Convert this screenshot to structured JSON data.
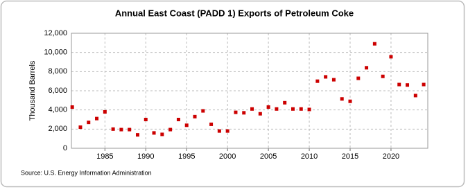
{
  "chart_data": {
    "type": "scatter",
    "title": "Annual East Coast (PADD 1) Exports of Petroleum Coke",
    "ylabel": "Thousand Barrels",
    "source": "Source: U.S. Energy Information Administration",
    "color": "#cc0000",
    "grid": true,
    "x": [
      1981,
      1982,
      1983,
      1984,
      1985,
      1986,
      1987,
      1988,
      1989,
      1990,
      1991,
      1992,
      1993,
      1994,
      1995,
      1996,
      1997,
      1998,
      1999,
      2000,
      2001,
      2002,
      2003,
      2004,
      2005,
      2006,
      2007,
      2008,
      2009,
      2010,
      2011,
      2012,
      2013,
      2014,
      2015,
      2016,
      2017,
      2018,
      2019,
      2020,
      2021,
      2022,
      2023,
      2024
    ],
    "values": [
      4300,
      2200,
      2700,
      3100,
      3800,
      2000,
      1950,
      1950,
      1400,
      3000,
      1600,
      1450,
      1950,
      3000,
      2400,
      3300,
      3900,
      2500,
      1800,
      1800,
      3750,
      3700,
      4100,
      3600,
      4300,
      4100,
      4750,
      4100,
      4100,
      4050,
      7000,
      7450,
      7150,
      5150,
      4900,
      7300,
      8400,
      10900,
      7500,
      9550,
      6650,
      6600,
      5500,
      6650
    ],
    "xlim": [
      1980.9,
      2024.5
    ],
    "xticks": [
      1985,
      1990,
      1995,
      2000,
      2005,
      2010,
      2015,
      2020
    ],
    "ylim": [
      0,
      12000
    ],
    "yticks": [
      0,
      {
        "value": 2000,
        "label": "2,000"
      },
      {
        "value": 4000,
        "label": "4,000"
      },
      {
        "value": 6000,
        "label": "6,000"
      },
      {
        "value": 8000,
        "label": "8,000"
      },
      {
        "value": 10000,
        "label": "10,000"
      },
      {
        "value": 12000,
        "label": "12,000"
      }
    ]
  }
}
